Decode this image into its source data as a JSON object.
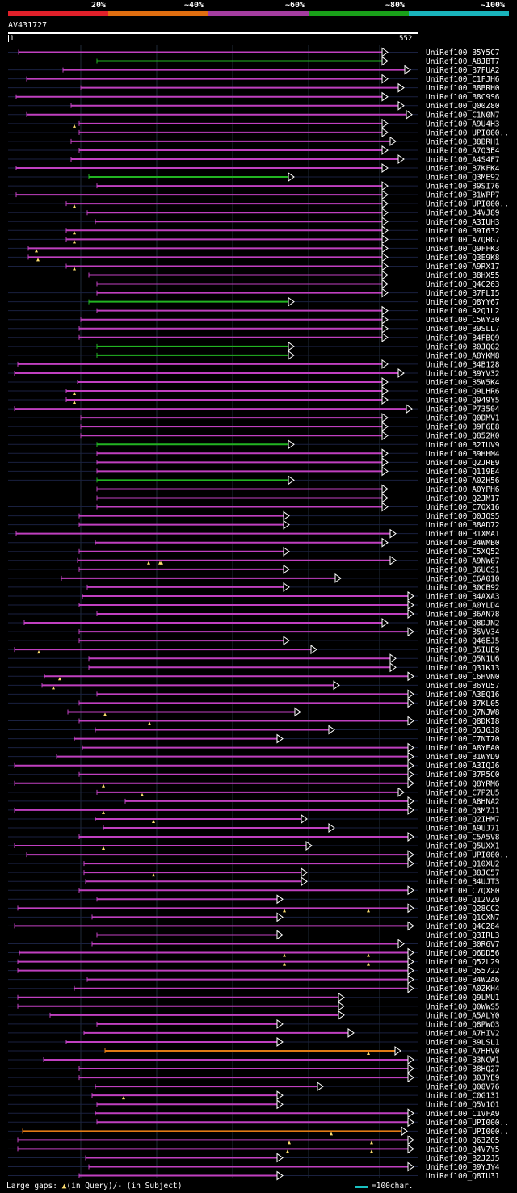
{
  "legend": [
    {
      "label": "20%",
      "color": "#e0202a"
    },
    {
      "label": "~40%",
      "color": "#e06e10"
    },
    {
      "label": "~60%",
      "color": "#a43da0"
    },
    {
      "label": "~80%",
      "color": "#19a019"
    },
    {
      "label": "~100%",
      "color": "#19b4bc"
    }
  ],
  "query": {
    "id": "AV431727",
    "start": "1",
    "end": "552"
  },
  "colors": {
    "purple": "#c040c0",
    "green": "#22b422",
    "orange": "#e07a14",
    "yellow": "#ffe070"
  },
  "hits": [
    {
      "id": "UniRef100_B5Y5C7",
      "c": "p",
      "s": 0,
      "e": 23,
      "a": 24,
      "b": 480
    },
    {
      "id": "UniRef100_A8JBT7",
      "c": "g",
      "s": 0,
      "e": 120,
      "a": 120,
      "b": 480
    },
    {
      "id": "UniRef100_B7FUA2",
      "c": "p",
      "s": 0,
      "e": 78,
      "a": 78,
      "b": 508
    },
    {
      "id": "UniRef100_C1FJH6",
      "c": "p",
      "s": 0,
      "e": 33,
      "a": 33,
      "b": 480
    },
    {
      "id": "UniRef100_B8BRH0",
      "c": "p",
      "s": 0,
      "e": 100,
      "a": 100,
      "b": 500
    },
    {
      "id": "UniRef100_B8C9S6",
      "c": "p",
      "s": 0,
      "e": 20,
      "a": 20,
      "b": 480
    },
    {
      "id": "UniRef100_Q00Z80",
      "c": "p",
      "s": 0,
      "e": 88,
      "a": 88,
      "b": 500
    },
    {
      "id": "UniRef100_C1N0N7",
      "c": "p",
      "s": 0,
      "e": 33,
      "a": 33,
      "b": 510
    },
    {
      "id": "UniRef100_A9U4H3",
      "c": "p",
      "s": 0,
      "e": 98,
      "a": 98,
      "b": 480,
      "t": [
        92
      ]
    },
    {
      "id": "UniRef100_UPI000..",
      "c": "p",
      "s": 0,
      "e": 98,
      "a": 98,
      "b": 480
    },
    {
      "id": "UniRef100_B8BRH1",
      "c": "p",
      "s": 0,
      "e": 88,
      "a": 88,
      "b": 490
    },
    {
      "id": "UniRef100_A7Q3E4",
      "c": "p",
      "s": 0,
      "e": 98,
      "a": 98,
      "b": 480
    },
    {
      "id": "UniRef100_A4S4F7",
      "c": "p",
      "s": 0,
      "e": 88,
      "a": 88,
      "b": 500
    },
    {
      "id": "UniRef100_B7KFK4",
      "c": "p",
      "s": 0,
      "e": 20,
      "a": 20,
      "b": 480
    },
    {
      "id": "UniRef100_Q3ME92",
      "c": "g",
      "s": 0,
      "e": 110,
      "a": 110,
      "b": 364
    },
    {
      "id": "UniRef100_B9SI76",
      "c": "p",
      "s": 0,
      "e": 120,
      "a": 120,
      "b": 480
    },
    {
      "id": "UniRef100_B1WPP7",
      "c": "p",
      "s": 0,
      "e": 20,
      "a": 20,
      "b": 480
    },
    {
      "id": "UniRef100_UPI000..",
      "c": "p",
      "s": 0,
      "e": 82,
      "a": 82,
      "b": 480,
      "t": [
        92
      ]
    },
    {
      "id": "UniRef100_B4VJ89",
      "c": "p",
      "s": 0,
      "e": 108,
      "a": 108,
      "b": 480
    },
    {
      "id": "UniRef100_A3IUH3",
      "c": "p",
      "s": 0,
      "e": 118,
      "a": 118,
      "b": 480
    },
    {
      "id": "UniRef100_B9I632",
      "c": "p",
      "s": 0,
      "e": 82,
      "a": 82,
      "b": 480,
      "t": [
        92
      ]
    },
    {
      "id": "UniRef100_A7QRG7",
      "c": "p",
      "s": 0,
      "e": 82,
      "a": 82,
      "b": 480,
      "t": [
        92
      ]
    },
    {
      "id": "UniRef100_Q9FFK3",
      "c": "p",
      "s": 0,
      "e": 35,
      "a": 35,
      "b": 480,
      "t": [
        45
      ]
    },
    {
      "id": "UniRef100_Q3E9K8",
      "c": "p",
      "s": 0,
      "e": 35,
      "a": 35,
      "b": 480,
      "t": [
        47
      ]
    },
    {
      "id": "UniRef100_A9RX17",
      "c": "p",
      "s": 0,
      "e": 82,
      "a": 82,
      "b": 480,
      "t": [
        92
      ]
    },
    {
      "id": "UniRef100_B8HX55",
      "c": "p",
      "s": 0,
      "e": 110,
      "a": 110,
      "b": 480
    },
    {
      "id": "UniRef100_Q4C263",
      "c": "p",
      "s": 0,
      "e": 120,
      "a": 120,
      "b": 480
    },
    {
      "id": "UniRef100_B7FLI5",
      "c": "p",
      "s": 0,
      "e": 120,
      "a": 120,
      "b": 480
    },
    {
      "id": "UniRef100_Q8YY67",
      "c": "g",
      "s": 0,
      "e": 110,
      "a": 110,
      "b": 364
    },
    {
      "id": "UniRef100_A2Q1L2",
      "c": "p",
      "s": 0,
      "e": 120,
      "a": 120,
      "b": 480
    },
    {
      "id": "UniRef100_C5WY30",
      "c": "p",
      "s": 0,
      "e": 100,
      "a": 100,
      "b": 480
    },
    {
      "id": "UniRef100_B9SLL7",
      "c": "p",
      "s": 0,
      "e": 98,
      "a": 98,
      "b": 480
    },
    {
      "id": "UniRef100_B4FBQ9",
      "c": "p",
      "s": 0,
      "e": 98,
      "a": 98,
      "b": 480
    },
    {
      "id": "UniRef100_B0JQG2",
      "c": "g",
      "s": 0,
      "e": 120,
      "a": 120,
      "b": 364
    },
    {
      "id": "UniRef100_A8YKM8",
      "c": "g",
      "s": 0,
      "e": 120,
      "a": 120,
      "b": 364
    },
    {
      "id": "UniRef100_B4B128",
      "c": "p",
      "s": 0,
      "e": 22,
      "a": 22,
      "b": 480
    },
    {
      "id": "UniRef100_B9YV32",
      "c": "p",
      "s": 0,
      "e": 18,
      "a": 18,
      "b": 500
    },
    {
      "id": "UniRef100_B5W5K4",
      "c": "p",
      "s": 0,
      "e": 96,
      "a": 96,
      "b": 480
    },
    {
      "id": "UniRef100_Q9LHR6",
      "c": "p",
      "s": 0,
      "e": 82,
      "a": 82,
      "b": 480,
      "t": [
        92
      ]
    },
    {
      "id": "UniRef100_Q949Y5",
      "c": "p",
      "s": 0,
      "e": 82,
      "a": 82,
      "b": 480,
      "t": [
        92
      ]
    },
    {
      "id": "UniRef100_P73504",
      "c": "p",
      "s": 0,
      "e": 18,
      "a": 18,
      "b": 510
    },
    {
      "id": "UniRef100_Q0DMV1",
      "c": "p",
      "s": 0,
      "e": 100,
      "a": 100,
      "b": 480
    },
    {
      "id": "UniRef100_B9F6E8",
      "c": "p",
      "s": 0,
      "e": 100,
      "a": 100,
      "b": 480
    },
    {
      "id": "UniRef100_Q852K0",
      "c": "p",
      "s": 0,
      "e": 100,
      "a": 100,
      "b": 480
    },
    {
      "id": "UniRef100_B2IUV9",
      "c": "g",
      "s": 0,
      "e": 120,
      "a": 120,
      "b": 364
    },
    {
      "id": "UniRef100_B9HHM4",
      "c": "p",
      "s": 0,
      "e": 120,
      "a": 120,
      "b": 480
    },
    {
      "id": "UniRef100_Q2JRE9",
      "c": "p",
      "s": 0,
      "e": 120,
      "a": 120,
      "b": 480
    },
    {
      "id": "UniRef100_Q119E4",
      "c": "p",
      "s": 0,
      "e": 120,
      "a": 120,
      "b": 480
    },
    {
      "id": "UniRef100_A0ZH56",
      "c": "g",
      "s": 0,
      "e": 120,
      "a": 120,
      "b": 364
    },
    {
      "id": "UniRef100_A0YPH6",
      "c": "p",
      "s": 0,
      "e": 120,
      "a": 120,
      "b": 480
    },
    {
      "id": "UniRef100_Q2JM17",
      "c": "p",
      "s": 0,
      "e": 120,
      "a": 120,
      "b": 480
    },
    {
      "id": "UniRef100_C7QX16",
      "c": "p",
      "s": 0,
      "e": 120,
      "a": 120,
      "b": 480
    },
    {
      "id": "UniRef100_Q0JQS5",
      "c": "p",
      "s": 0,
      "e": 98,
      "a": 98,
      "b": 358
    },
    {
      "id": "UniRef100_B8AD72",
      "c": "p",
      "s": 0,
      "e": 98,
      "a": 98,
      "b": 358
    },
    {
      "id": "UniRef100_B1XMA1",
      "c": "p",
      "s": 0,
      "e": 20,
      "a": 20,
      "b": 490
    },
    {
      "id": "UniRef100_B4WMB0",
      "c": "p",
      "s": 0,
      "e": 118,
      "a": 118,
      "b": 480
    },
    {
      "id": "UniRef100_C5XQ52",
      "c": "p",
      "s": 0,
      "e": 98,
      "a": 98,
      "b": 358
    },
    {
      "id": "UniRef100_A9NW07",
      "c": "p",
      "s": 0,
      "e": 96,
      "a": 96,
      "b": 490,
      "t": [
        184,
        198,
        200
      ]
    },
    {
      "id": "UniRef100_B6UCS1",
      "c": "p",
      "s": 0,
      "e": 98,
      "a": 98,
      "b": 358
    },
    {
      "id": "UniRef100_C6A010",
      "c": "p",
      "s": 0,
      "e": 76,
      "a": 76,
      "b": 422
    },
    {
      "id": "UniRef100_B0CB92",
      "c": "p",
      "s": 0,
      "e": 108,
      "a": 108,
      "b": 358
    },
    {
      "id": "UniRef100_B4AXA3",
      "c": "p",
      "s": 0,
      "e": 102,
      "a": 102,
      "b": 512
    },
    {
      "id": "UniRef100_A0YLD4",
      "c": "p",
      "s": 0,
      "e": 98,
      "a": 98,
      "b": 512
    },
    {
      "id": "UniRef100_B6AN78",
      "c": "p",
      "s": 0,
      "e": 120,
      "a": 120,
      "b": 512
    },
    {
      "id": "UniRef100_Q8DJN2",
      "c": "p",
      "s": 0,
      "e": 30,
      "a": 30,
      "b": 480
    },
    {
      "id": "UniRef100_B5VV34",
      "c": "p",
      "s": 0,
      "e": 98,
      "a": 98,
      "b": 512
    },
    {
      "id": "UniRef100_Q46EJ5",
      "c": "p",
      "s": 0,
      "e": 98,
      "a": 98,
      "b": 358
    },
    {
      "id": "UniRef100_B5IUE9",
      "c": "p",
      "s": 0,
      "e": 18,
      "a": 18,
      "b": 392,
      "t": [
        48
      ]
    },
    {
      "id": "UniRef100_Q5N1U6",
      "c": "p",
      "s": 0,
      "e": 110,
      "a": 110,
      "b": 490
    },
    {
      "id": "UniRef100_Q31K13",
      "c": "p",
      "s": 0,
      "e": 110,
      "a": 110,
      "b": 490
    },
    {
      "id": "UniRef100_C6HVN0",
      "c": "p",
      "s": 0,
      "e": 55,
      "a": 55,
      "b": 512,
      "t": [
        74
      ]
    },
    {
      "id": "UniRef100_B6YU57",
      "c": "p",
      "s": 0,
      "e": 52,
      "a": 52,
      "b": 420,
      "t": [
        66
      ]
    },
    {
      "id": "UniRef100_A3EQ16",
      "c": "p",
      "s": 0,
      "e": 120,
      "a": 120,
      "b": 512
    },
    {
      "id": "UniRef100_B7KL05",
      "c": "p",
      "s": 0,
      "e": 98,
      "a": 98,
      "b": 512
    },
    {
      "id": "UniRef100_Q7NJW8",
      "c": "p",
      "s": 0,
      "e": 84,
      "a": 84,
      "b": 372,
      "t": [
        130
      ]
    },
    {
      "id": "UniRef100_Q8DKI8",
      "c": "p",
      "s": 0,
      "e": 98,
      "a": 98,
      "b": 512,
      "t": [
        185
      ]
    },
    {
      "id": "UniRef100_Q5JGJ8",
      "c": "p",
      "s": 0,
      "e": 118,
      "a": 118,
      "b": 414
    },
    {
      "id": "UniRef100_C7NT70",
      "c": "p",
      "s": 0,
      "e": 92,
      "a": 92,
      "b": 350
    },
    {
      "id": "UniRef100_A8YEA0",
      "c": "p",
      "s": 0,
      "e": 102,
      "a": 102,
      "b": 512
    },
    {
      "id": "UniRef100_B1WYD9",
      "c": "p",
      "s": 0,
      "e": 70,
      "a": 70,
      "b": 512
    },
    {
      "id": "UniRef100_A3IQJ6",
      "c": "p",
      "s": 0,
      "e": 18,
      "a": 18,
      "b": 512
    },
    {
      "id": "UniRef100_B7R5C0",
      "c": "p",
      "s": 0,
      "e": 98,
      "a": 98,
      "b": 512
    },
    {
      "id": "UniRef100_Q8YRM6",
      "c": "p",
      "s": 0,
      "e": 18,
      "a": 18,
      "b": 512,
      "t": [
        128
      ]
    },
    {
      "id": "UniRef100_C7P2U5",
      "c": "p",
      "s": 0,
      "e": 120,
      "a": 120,
      "b": 500,
      "t": [
        176
      ]
    },
    {
      "id": "UniRef100_A8HNA2",
      "c": "p",
      "s": 0,
      "e": 155,
      "a": 155,
      "b": 512
    },
    {
      "id": "UniRef100_Q3M7J1",
      "c": "p",
      "s": 0,
      "e": 18,
      "a": 18,
      "b": 512,
      "t": [
        128
      ]
    },
    {
      "id": "UniRef100_Q2IHM7",
      "c": "p",
      "s": 0,
      "e": 118,
      "a": 118,
      "b": 380,
      "t": [
        190
      ]
    },
    {
      "id": "UniRef100_A9UJ71",
      "c": "p",
      "s": 0,
      "e": 128,
      "a": 128,
      "b": 414
    },
    {
      "id": "UniRef100_C5A5V8",
      "c": "p",
      "s": 0,
      "e": 98,
      "a": 98,
      "b": 512
    },
    {
      "id": "UniRef100_Q5UXX1",
      "c": "p",
      "s": 0,
      "e": 18,
      "a": 18,
      "b": 386,
      "t": [
        128
      ]
    },
    {
      "id": "UniRef100_UPI000..",
      "c": "p",
      "s": 0,
      "e": 33,
      "a": 33,
      "b": 512
    },
    {
      "id": "UniRef100_Q10XU2",
      "c": "p",
      "s": 0,
      "e": 104,
      "a": 104,
      "b": 512
    },
    {
      "id": "UniRef100_B8JC57",
      "c": "p",
      "s": 0,
      "e": 104,
      "a": 104,
      "b": 380,
      "t": [
        190
      ]
    },
    {
      "id": "UniRef100_B4UJT3",
      "c": "p",
      "s": 0,
      "e": 106,
      "a": 106,
      "b": 380
    },
    {
      "id": "UniRef100_C7QX80",
      "c": "p",
      "s": 0,
      "e": 98,
      "a": 98,
      "b": 512
    },
    {
      "id": "UniRef100_Q12VZ9",
      "c": "p",
      "s": 0,
      "e": 120,
      "a": 120,
      "b": 350
    },
    {
      "id": "UniRef100_Q28CC2",
      "c": "p",
      "s": 0,
      "e": 22,
      "a": 22,
      "b": 512,
      "t": [
        352,
        456
      ]
    },
    {
      "id": "UniRef100_Q1CXN7",
      "c": "p",
      "s": 0,
      "e": 114,
      "a": 114,
      "b": 350
    },
    {
      "id": "UniRef100_Q4C284",
      "c": "p",
      "s": 0,
      "e": 18,
      "a": 18,
      "b": 512
    },
    {
      "id": "UniRef100_Q3IRL3",
      "c": "p",
      "s": 0,
      "e": 120,
      "a": 120,
      "b": 350
    },
    {
      "id": "UniRef100_B0R6V7",
      "c": "p",
      "s": 0,
      "e": 114,
      "a": 114,
      "b": 500
    },
    {
      "id": "UniRef100_Q6DD56",
      "c": "p",
      "s": 0,
      "e": 24,
      "a": 24,
      "b": 512,
      "t": [
        352,
        456
      ]
    },
    {
      "id": "UniRef100_Q52L29",
      "c": "p",
      "s": 0,
      "e": 22,
      "a": 22,
      "b": 512,
      "t": [
        352,
        456
      ]
    },
    {
      "id": "UniRef100_Q55722",
      "c": "p",
      "s": 0,
      "e": 22,
      "a": 22,
      "b": 512
    },
    {
      "id": "UniRef100_B4W2A6",
      "c": "p",
      "s": 0,
      "e": 108,
      "a": 108,
      "b": 512
    },
    {
      "id": "UniRef100_A0ZKH4",
      "c": "p",
      "s": 0,
      "e": 92,
      "a": 92,
      "b": 512
    },
    {
      "id": "UniRef100_Q9LMU1",
      "c": "p",
      "s": 0,
      "e": 22,
      "a": 22,
      "b": 426
    },
    {
      "id": "UniRef100_Q0WWS5",
      "c": "p",
      "s": 0,
      "e": 22,
      "a": 22,
      "b": 426
    },
    {
      "id": "UniRef100_A5ALY0",
      "c": "p",
      "s": 0,
      "e": 62,
      "a": 62,
      "b": 426
    },
    {
      "id": "UniRef100_Q8PWQ3",
      "c": "p",
      "s": 0,
      "e": 120,
      "a": 120,
      "b": 350
    },
    {
      "id": "UniRef100_A7HIV2",
      "c": "p",
      "s": 0,
      "e": 104,
      "a": 104,
      "b": 438
    },
    {
      "id": "UniRef100_B9LSL1",
      "c": "p",
      "s": 0,
      "e": 82,
      "a": 82,
      "b": 350
    },
    {
      "id": "UniRef100_A7HHV0",
      "c": "o",
      "s": 0,
      "e": 130,
      "a": 130,
      "b": 496,
      "t": [
        456
      ]
    },
    {
      "id": "UniRef100_B3NCW1",
      "c": "p",
      "s": 0,
      "e": 54,
      "a": 54,
      "b": 512
    },
    {
      "id": "UniRef100_B8HQ27",
      "c": "p",
      "s": 0,
      "e": 98,
      "a": 98,
      "b": 512
    },
    {
      "id": "UniRef100_B0JYE9",
      "c": "p",
      "s": 0,
      "e": 98,
      "a": 98,
      "b": 512
    },
    {
      "id": "UniRef100_Q08V76",
      "c": "p",
      "s": 0,
      "e": 118,
      "a": 118,
      "b": 400
    },
    {
      "id": "UniRef100_C0G131",
      "c": "p",
      "s": 0,
      "e": 114,
      "a": 114,
      "b": 350,
      "t": [
        153
      ]
    },
    {
      "id": "UniRef100_Q5V1Q1",
      "c": "p",
      "s": 0,
      "e": 120,
      "a": 120,
      "b": 350
    },
    {
      "id": "UniRef100_C1VFA9",
      "c": "p",
      "s": 0,
      "e": 118,
      "a": 118,
      "b": 512
    },
    {
      "id": "UniRef100_UPI000..",
      "c": "p",
      "s": 0,
      "e": 120,
      "a": 120,
      "b": 512
    },
    {
      "id": "UniRef100_UPI000..",
      "c": "o",
      "s": 0,
      "e": 28,
      "a": 28,
      "b": 504,
      "t": [
        410
      ]
    },
    {
      "id": "UniRef100_Q63Z05",
      "c": "p",
      "s": 0,
      "e": 22,
      "a": 22,
      "b": 512,
      "t": [
        358,
        460
      ]
    },
    {
      "id": "UniRef100_Q4V7Y5",
      "c": "p",
      "s": 0,
      "e": 22,
      "a": 22,
      "b": 512,
      "t": [
        356,
        460
      ]
    },
    {
      "id": "UniRef100_B2J2J5",
      "c": "p",
      "s": 0,
      "e": 106,
      "a": 106,
      "b": 350
    },
    {
      "id": "UniRef100_B9YJY4",
      "c": "p",
      "s": 0,
      "e": 110,
      "a": 110,
      "b": 512
    },
    {
      "id": "UniRef100_Q8TU31",
      "c": "p",
      "s": 0,
      "e": 98,
      "a": 98,
      "b": 350
    }
  ],
  "footer": {
    "gaps_prefix": "Large gaps:",
    "gaps_query": "(in Query)/",
    "gaps_subject_marker": "-",
    "gaps_subject": "(in Subject)",
    "scale_text": "=100char."
  }
}
